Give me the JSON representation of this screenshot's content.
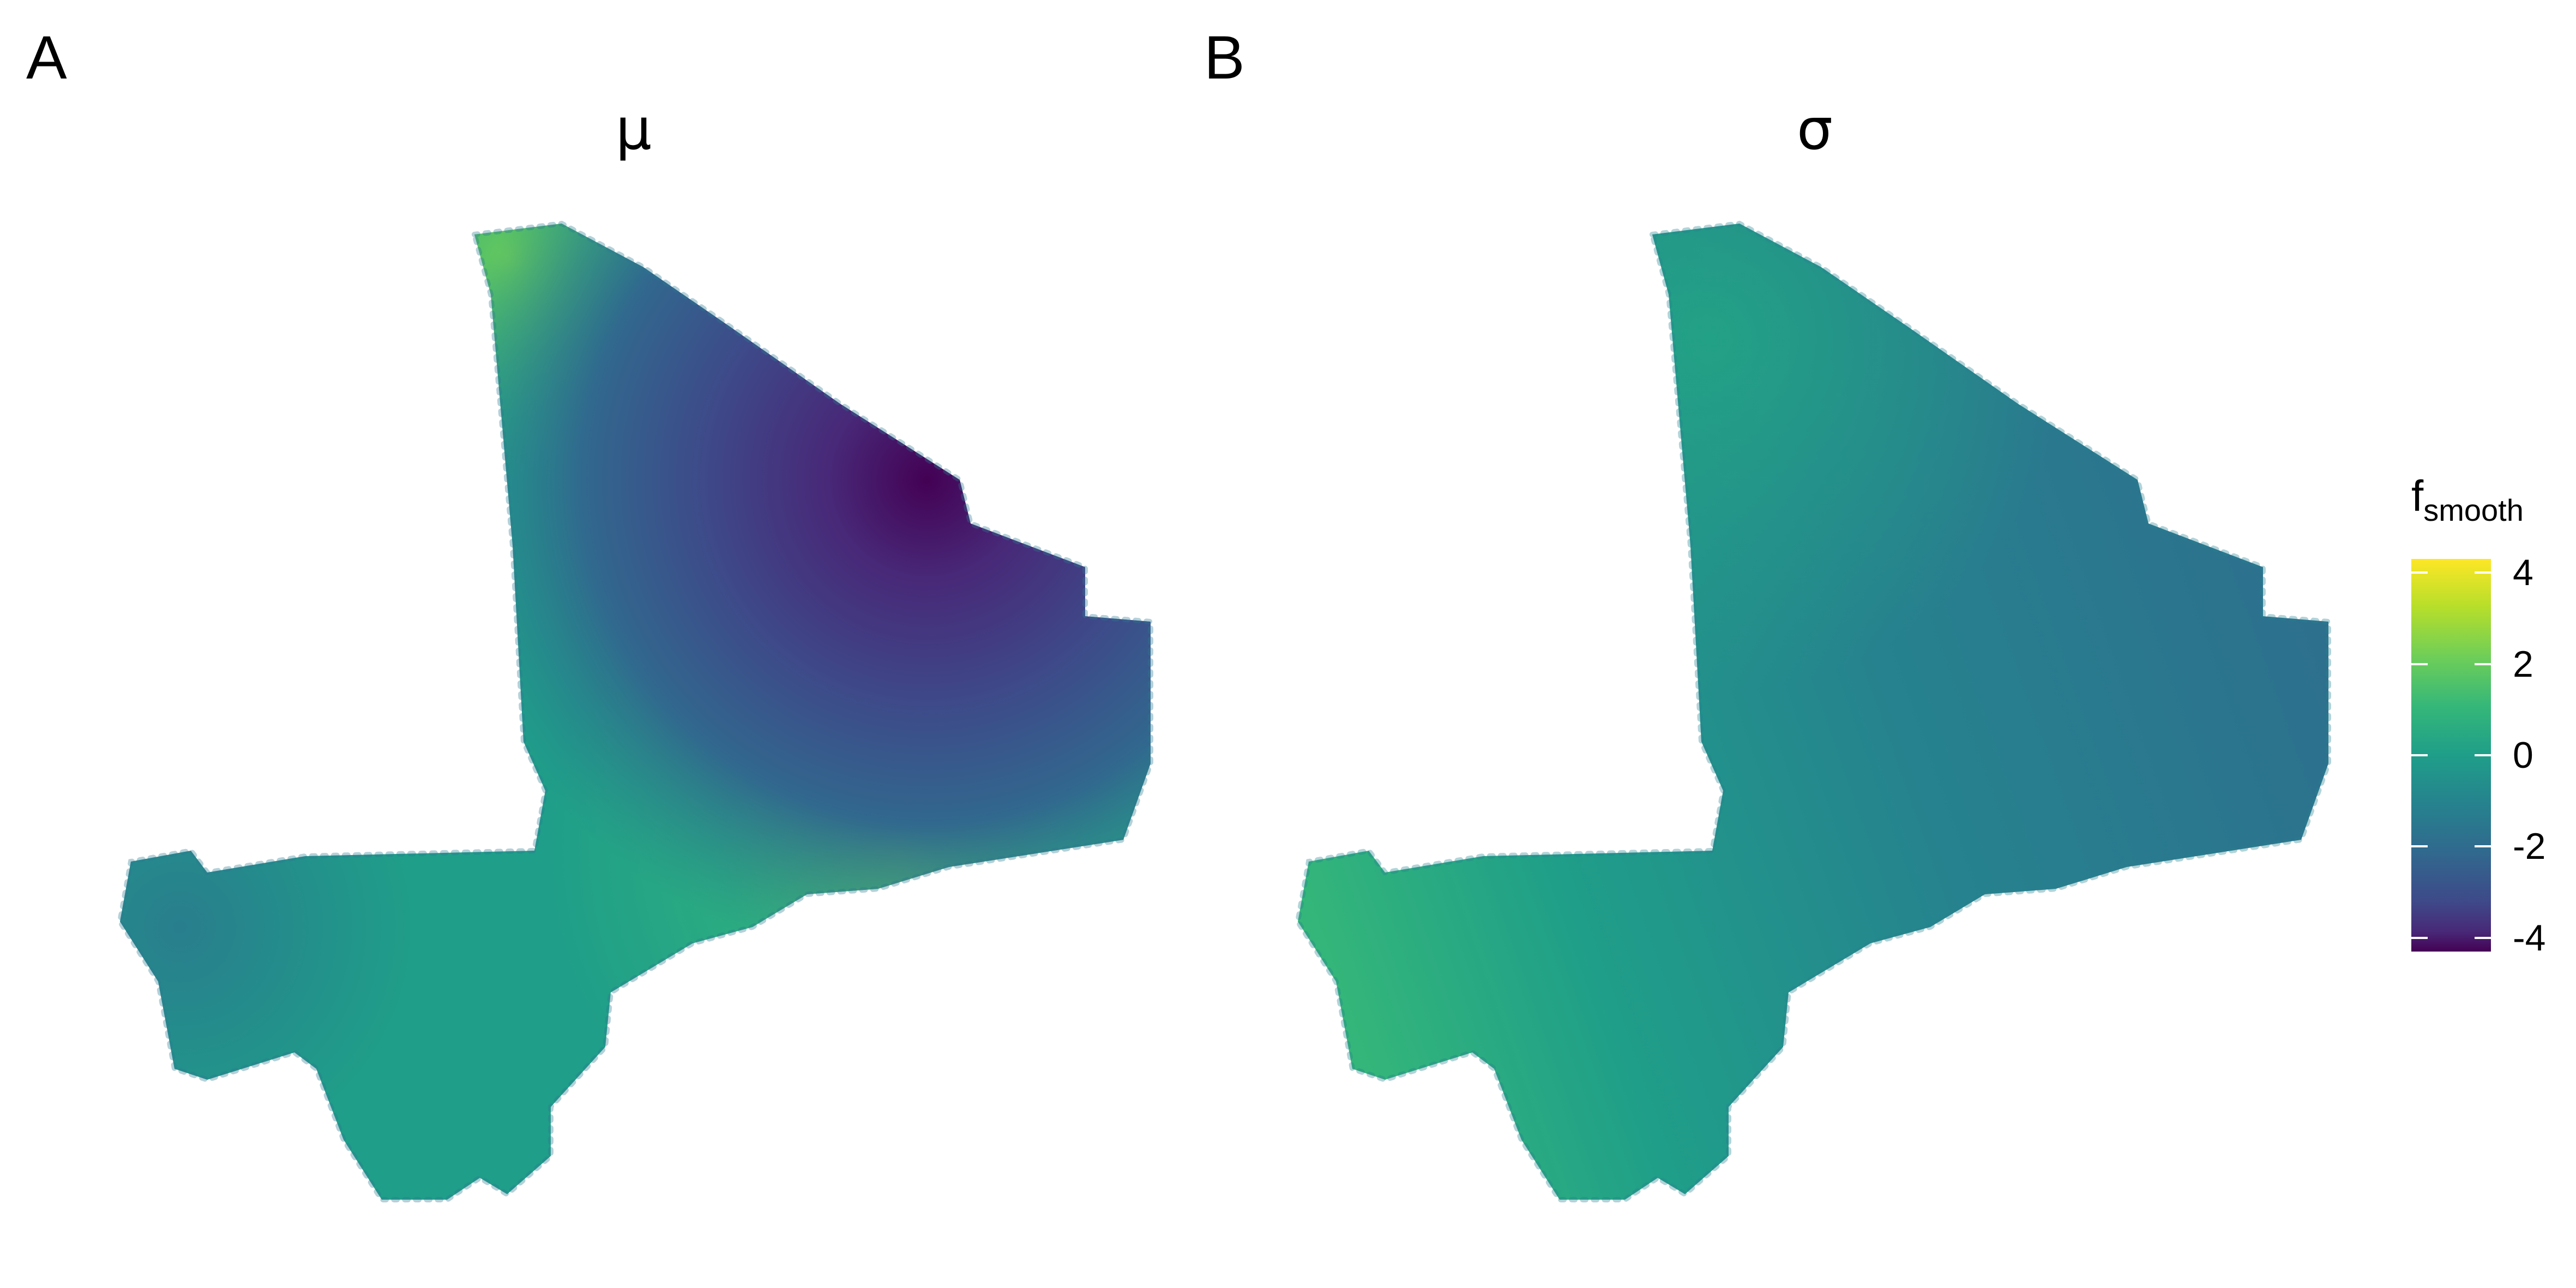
{
  "panels": [
    {
      "letter": "A",
      "title": "μ"
    },
    {
      "letter": "B",
      "title": "σ"
    }
  ],
  "legend": {
    "title_main": "f",
    "title_sub": "smooth",
    "ticks": [
      {
        "value": 4,
        "label": "4"
      },
      {
        "value": 2,
        "label": "2"
      },
      {
        "value": 0,
        "label": "0"
      },
      {
        "value": -2,
        "label": "-2"
      },
      {
        "value": -4,
        "label": "-4"
      }
    ],
    "range": [
      -4.3,
      4.3
    ],
    "palette": "viridis"
  },
  "colors": {
    "viridis": [
      "#440154",
      "#482878",
      "#3E4989",
      "#31688E",
      "#26828E",
      "#1F9E89",
      "#35B779",
      "#6ECE58",
      "#B5DE2B",
      "#FDE725"
    ]
  }
}
